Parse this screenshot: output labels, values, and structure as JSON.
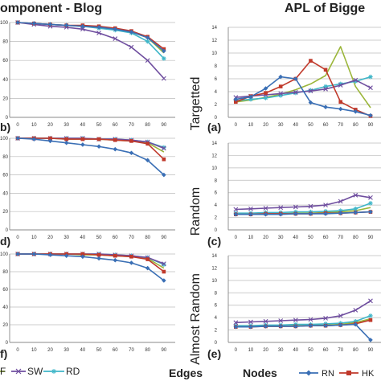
{
  "headings": {
    "left": "omponent - Blog",
    "right": "APL of Bigge"
  },
  "row_labels": [
    "Targetted",
    "Random",
    "Almost Random"
  ],
  "panel_letters": {
    "left": [
      "b)",
      "d)",
      "f)"
    ],
    "right": [
      "(a)",
      "(c)",
      "(e)"
    ]
  },
  "bottom_labels": {
    "edges": "Edges",
    "nodes": "Nodes"
  },
  "legend_left": [
    "F",
    "SW",
    "RD"
  ],
  "legend_right": [
    "RN",
    "HK"
  ],
  "colors": {
    "RN": "#3a6fb5",
    "HK": "#c0392b",
    "SW": "#6f4e9f",
    "RD": "#3fb6c8",
    "F": "#9bb63a",
    "grid": "#bbbbbb",
    "axis": "#888888"
  },
  "chart_data": [
    {
      "type": "line",
      "panel": "b",
      "title": "",
      "xlabel": "",
      "ylabel": "",
      "x": [
        0,
        10,
        20,
        30,
        40,
        50,
        60,
        70,
        80,
        90
      ],
      "ylim": [
        0,
        100
      ],
      "yticks": [
        0,
        20,
        40,
        60,
        80,
        100
      ],
      "series": [
        {
          "name": "RN",
          "values": [
            100,
            99,
            98,
            97,
            96,
            95,
            93,
            90,
            84,
            70
          ]
        },
        {
          "name": "HK",
          "values": [
            100,
            99,
            98,
            97,
            97,
            96,
            94,
            91,
            85,
            72
          ]
        },
        {
          "name": "SW",
          "values": [
            100,
            98,
            96,
            95,
            93,
            89,
            83,
            74,
            60,
            41
          ]
        },
        {
          "name": "RD",
          "values": [
            100,
            99,
            98,
            97,
            96,
            94,
            92,
            89,
            80,
            62
          ]
        },
        {
          "name": "F",
          "values": [
            100,
            99,
            98,
            97,
            96,
            95,
            93,
            90,
            84,
            68
          ]
        }
      ]
    },
    {
      "type": "line",
      "panel": "d",
      "title": "",
      "xlabel": "",
      "ylabel": "",
      "x": [
        0,
        10,
        20,
        30,
        40,
        50,
        60,
        70,
        80,
        90
      ],
      "ylim": [
        0,
        100
      ],
      "yticks": [
        0,
        20,
        40,
        60,
        80,
        100
      ],
      "series": [
        {
          "name": "RN",
          "values": [
            100,
            99,
            97,
            95,
            93,
            91,
            88,
            84,
            76,
            60
          ]
        },
        {
          "name": "HK",
          "values": [
            100,
            100,
            100,
            99,
            99,
            99,
            98,
            97,
            94,
            77
          ]
        },
        {
          "name": "SW",
          "values": [
            100,
            100,
            100,
            100,
            100,
            99,
            99,
            98,
            96,
            89
          ]
        },
        {
          "name": "RD",
          "values": [
            100,
            100,
            100,
            100,
            100,
            99,
            99,
            98,
            96,
            90
          ]
        },
        {
          "name": "F",
          "values": [
            100,
            100,
            100,
            99,
            99,
            99,
            98,
            97,
            95,
            85
          ]
        }
      ]
    },
    {
      "type": "line",
      "panel": "f",
      "title": "",
      "xlabel": "",
      "ylabel": "",
      "x": [
        0,
        10,
        20,
        30,
        40,
        50,
        60,
        70,
        80,
        90
      ],
      "ylim": [
        0,
        100
      ],
      "yticks": [
        0,
        20,
        40,
        60,
        80,
        100
      ],
      "series": [
        {
          "name": "RN",
          "values": [
            100,
            100,
            99,
            98,
            97,
            95,
            93,
            90,
            84,
            70
          ]
        },
        {
          "name": "HK",
          "values": [
            100,
            100,
            100,
            100,
            100,
            99,
            98,
            97,
            94,
            80
          ]
        },
        {
          "name": "SW",
          "values": [
            100,
            100,
            100,
            100,
            100,
            100,
            99,
            98,
            96,
            89
          ]
        },
        {
          "name": "RD",
          "values": [
            100,
            100,
            100,
            100,
            100,
            100,
            99,
            98,
            96,
            88
          ]
        },
        {
          "name": "F",
          "values": [
            100,
            100,
            100,
            100,
            99,
            99,
            98,
            97,
            95,
            84
          ]
        }
      ]
    },
    {
      "type": "line",
      "panel": "a",
      "title": "",
      "xlabel": "",
      "ylabel": "",
      "x": [
        0,
        10,
        20,
        30,
        40,
        50,
        60,
        70,
        80,
        90
      ],
      "ylim": [
        0,
        14
      ],
      "yticks": [
        0,
        2,
        4,
        6,
        8,
        10,
        12,
        14
      ],
      "series": [
        {
          "name": "RN",
          "values": [
            2.8,
            3.2,
            4.5,
            6.3,
            6.0,
            2.3,
            1.6,
            1.3,
            0.9,
            0.3
          ]
        },
        {
          "name": "HK",
          "values": [
            2.4,
            3.3,
            3.8,
            4.8,
            6.0,
            8.8,
            7.4,
            2.4,
            1.2,
            0.2
          ]
        },
        {
          "name": "SW",
          "values": [
            3.1,
            3.3,
            3.5,
            3.7,
            3.9,
            4.1,
            4.4,
            5.0,
            5.8,
            4.6
          ]
        },
        {
          "name": "RD",
          "values": [
            2.6,
            2.8,
            3.0,
            3.4,
            3.8,
            4.2,
            4.8,
            5.2,
            5.6,
            6.3
          ]
        },
        {
          "name": "F",
          "values": [
            2.4,
            2.7,
            3.1,
            3.6,
            4.3,
            5.2,
            6.5,
            11.0,
            4.8,
            1.5
          ]
        }
      ]
    },
    {
      "type": "line",
      "panel": "c",
      "title": "",
      "xlabel": "",
      "ylabel": "",
      "x": [
        0,
        10,
        20,
        30,
        40,
        50,
        60,
        70,
        80,
        90
      ],
      "ylim": [
        0,
        14
      ],
      "yticks": [
        0,
        2,
        4,
        6,
        8,
        10,
        12,
        14
      ],
      "series": [
        {
          "name": "RN",
          "values": [
            2.5,
            2.5,
            2.5,
            2.5,
            2.6,
            2.6,
            2.6,
            2.7,
            2.8,
            2.9
          ]
        },
        {
          "name": "HK",
          "values": [
            2.5,
            2.5,
            2.6,
            2.6,
            2.6,
            2.6,
            2.7,
            2.7,
            2.8,
            2.9
          ]
        },
        {
          "name": "SW",
          "values": [
            3.3,
            3.4,
            3.5,
            3.6,
            3.7,
            3.8,
            4.0,
            4.6,
            5.6,
            5.2
          ]
        },
        {
          "name": "RD",
          "values": [
            2.7,
            2.7,
            2.8,
            2.8,
            2.9,
            2.9,
            3.0,
            3.1,
            3.4,
            4.3
          ]
        },
        {
          "name": "F",
          "values": [
            2.5,
            2.6,
            2.6,
            2.6,
            2.7,
            2.7,
            2.8,
            2.9,
            3.1,
            3.6
          ]
        }
      ]
    },
    {
      "type": "line",
      "panel": "e",
      "title": "",
      "xlabel": "",
      "ylabel": "",
      "x": [
        0,
        10,
        20,
        30,
        40,
        50,
        60,
        70,
        80,
        90
      ],
      "ylim": [
        0,
        14
      ],
      "yticks": [
        0,
        2,
        4,
        6,
        8,
        10,
        12,
        14
      ],
      "series": [
        {
          "name": "RN",
          "values": [
            2.5,
            2.5,
            2.6,
            2.6,
            2.6,
            2.7,
            2.7,
            2.8,
            2.9,
            0.4
          ]
        },
        {
          "name": "HK",
          "values": [
            2.5,
            2.5,
            2.6,
            2.6,
            2.6,
            2.7,
            2.7,
            2.8,
            3.0,
            3.6
          ]
        },
        {
          "name": "SW",
          "values": [
            3.2,
            3.3,
            3.4,
            3.5,
            3.6,
            3.7,
            3.9,
            4.3,
            5.2,
            6.7
          ]
        },
        {
          "name": "RD",
          "values": [
            2.7,
            2.7,
            2.8,
            2.8,
            2.9,
            2.9,
            3.0,
            3.1,
            3.4,
            4.3
          ]
        },
        {
          "name": "F",
          "values": [
            2.5,
            2.6,
            2.6,
            2.6,
            2.7,
            2.7,
            2.8,
            2.9,
            3.2,
            3.8
          ]
        }
      ]
    }
  ]
}
